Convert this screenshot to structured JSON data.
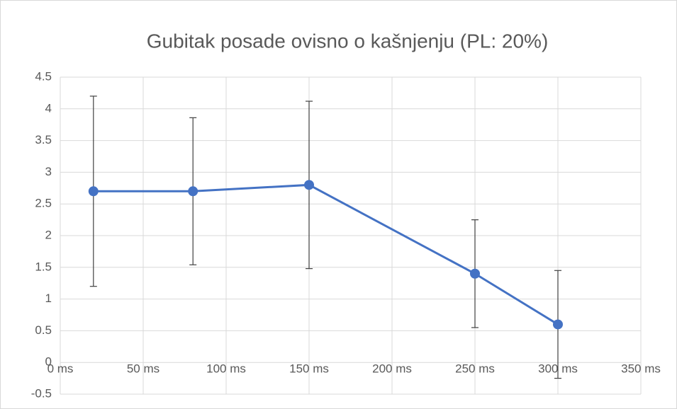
{
  "chart_data": {
    "type": "line",
    "title": "Gubitak posade ovisno o kašnjenju (PL: 20%)",
    "x": [
      20,
      80,
      150,
      250,
      300
    ],
    "values": [
      2.7,
      2.7,
      2.8,
      1.4,
      0.6
    ],
    "errors": [
      1.5,
      1.16,
      1.32,
      0.85,
      0.85
    ],
    "color": "#4472c4",
    "xlim": [
      0,
      350
    ],
    "xticks": [
      {
        "value": 0,
        "label": "0 ms"
      },
      {
        "value": 50,
        "label": "50 ms"
      },
      {
        "value": 100,
        "label": "100 ms"
      },
      {
        "value": 150,
        "label": "150 ms"
      },
      {
        "value": 200,
        "label": "200 ms"
      },
      {
        "value": 250,
        "label": "250 ms"
      },
      {
        "value": 300,
        "label": "300 ms"
      },
      {
        "value": 350,
        "label": "350 ms"
      }
    ],
    "ylim": [
      -0.5,
      4.5
    ],
    "yticks": [
      -0.5,
      0,
      0.5,
      1,
      1.5,
      2,
      2.5,
      3,
      3.5,
      4,
      4.5
    ],
    "grid": true
  }
}
